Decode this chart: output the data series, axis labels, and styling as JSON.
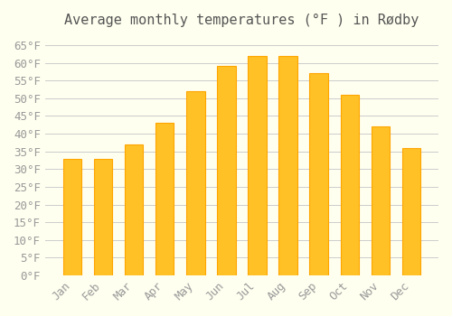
{
  "title": "Average monthly temperatures (°F ) in Rødby",
  "months": [
    "Jan",
    "Feb",
    "Mar",
    "Apr",
    "May",
    "Jun",
    "Jul",
    "Aug",
    "Sep",
    "Oct",
    "Nov",
    "Dec"
  ],
  "values": [
    33,
    33,
    37,
    43,
    52,
    59,
    62,
    62,
    57,
    51,
    42,
    36
  ],
  "bar_color_face": "#FFC125",
  "bar_color_edge": "#FFA500",
  "background_color": "#FFFFF0",
  "grid_color": "#CCCCCC",
  "text_color": "#999999",
  "title_color": "#555555",
  "ylim": [
    0,
    68
  ],
  "yticks": [
    0,
    5,
    10,
    15,
    20,
    25,
    30,
    35,
    40,
    45,
    50,
    55,
    60,
    65
  ],
  "title_fontsize": 11,
  "tick_fontsize": 9
}
